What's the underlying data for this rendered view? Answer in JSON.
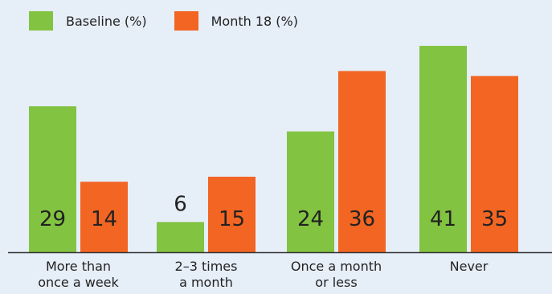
{
  "chart_data": {
    "type": "bar",
    "categories": [
      [
        "More than",
        "once a week"
      ],
      [
        "2–3 times",
        "a month"
      ],
      [
        "Once a month",
        "or less"
      ],
      [
        "Never"
      ]
    ],
    "series": [
      {
        "name": "Baseline (%)",
        "values": [
          29,
          6,
          24,
          41
        ],
        "color": "#82c341"
      },
      {
        "name": "Month 18 (%)",
        "values": [
          14,
          15,
          36,
          35
        ],
        "color": "#f26522"
      }
    ],
    "ylim": [
      0,
      45
    ],
    "grid": false,
    "legend": "top-left"
  }
}
